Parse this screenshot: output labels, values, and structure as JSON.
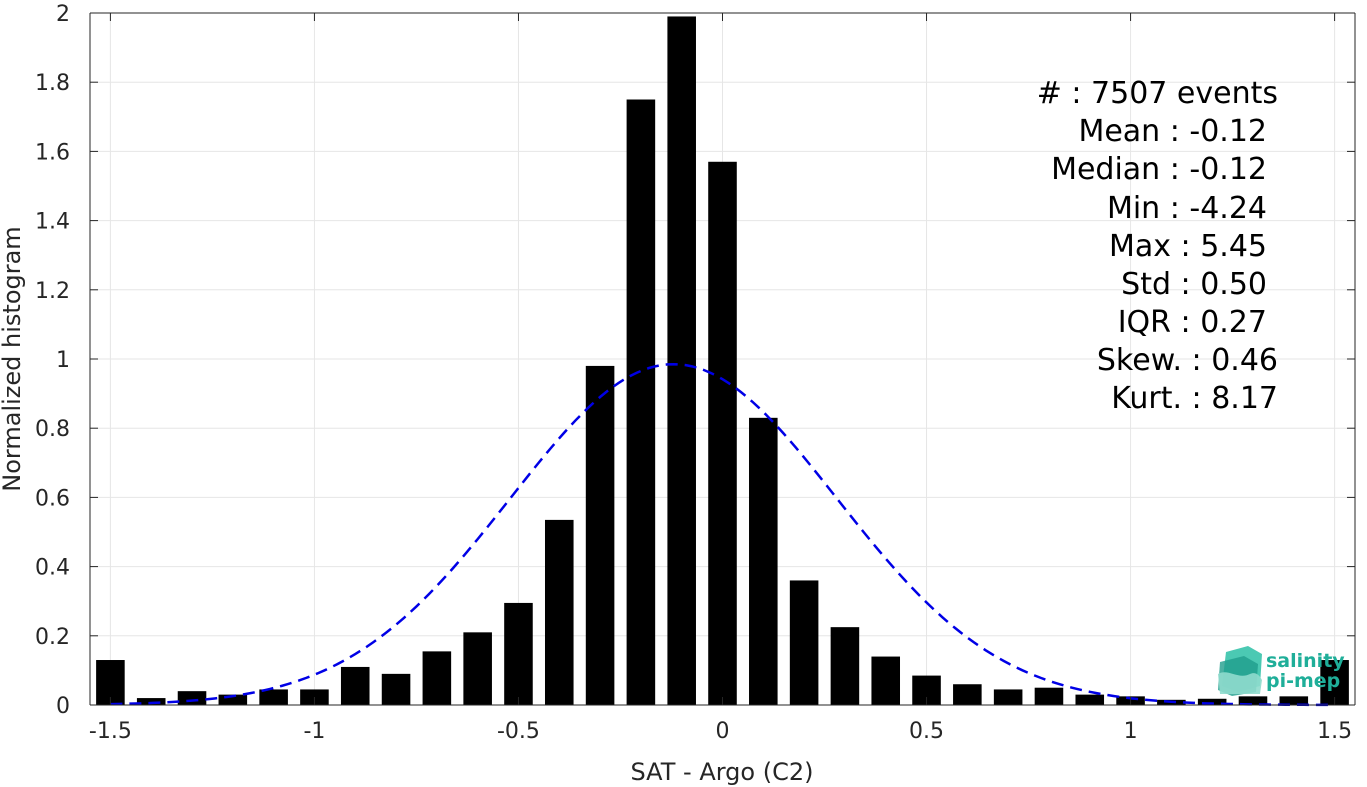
{
  "chart_data": {
    "type": "bar",
    "xlabel": "SAT - Argo (C2)",
    "ylabel": "Normalized histogram",
    "xlim": [
      -1.55,
      1.55
    ],
    "ylim": [
      0,
      2
    ],
    "xticks": [
      -1.5,
      -1,
      -0.5,
      0,
      0.5,
      1,
      1.5
    ],
    "xtick_labels": [
      "-1.5",
      "-1",
      "-0.5",
      "0",
      "0.5",
      "1",
      "1.5"
    ],
    "yticks": [
      0,
      0.2,
      0.4,
      0.6,
      0.8,
      1,
      1.2,
      1.4,
      1.6,
      1.8,
      2
    ],
    "ytick_labels": [
      "0",
      "0.2",
      "0.4",
      "0.6",
      "0.8",
      "1",
      "1.2",
      "1.4",
      "1.6",
      "1.8",
      "2"
    ],
    "grid": true,
    "bar_color": "#000000",
    "fit_color": "#0000e6",
    "bins": [
      {
        "x": -1.5,
        "y": 0.13
      },
      {
        "x": -1.4,
        "y": 0.02
      },
      {
        "x": -1.3,
        "y": 0.04
      },
      {
        "x": -1.2,
        "y": 0.03
      },
      {
        "x": -1.1,
        "y": 0.045
      },
      {
        "x": -1.0,
        "y": 0.045
      },
      {
        "x": -0.9,
        "y": 0.11
      },
      {
        "x": -0.8,
        "y": 0.09
      },
      {
        "x": -0.7,
        "y": 0.155
      },
      {
        "x": -0.6,
        "y": 0.21
      },
      {
        "x": -0.5,
        "y": 0.295
      },
      {
        "x": -0.4,
        "y": 0.535
      },
      {
        "x": -0.3,
        "y": 0.98
      },
      {
        "x": -0.2,
        "y": 1.75
      },
      {
        "x": -0.1,
        "y": 1.99
      },
      {
        "x": 0.0,
        "y": 1.57
      },
      {
        "x": 0.1,
        "y": 0.83
      },
      {
        "x": 0.2,
        "y": 0.36
      },
      {
        "x": 0.3,
        "y": 0.225
      },
      {
        "x": 0.4,
        "y": 0.14
      },
      {
        "x": 0.5,
        "y": 0.085
      },
      {
        "x": 0.6,
        "y": 0.06
      },
      {
        "x": 0.7,
        "y": 0.045
      },
      {
        "x": 0.8,
        "y": 0.05
      },
      {
        "x": 0.9,
        "y": 0.03
      },
      {
        "x": 1.0,
        "y": 0.025
      },
      {
        "x": 1.1,
        "y": 0.015
      },
      {
        "x": 1.2,
        "y": 0.018
      },
      {
        "x": 1.3,
        "y": 0.025
      },
      {
        "x": 1.4,
        "y": 0.025
      },
      {
        "x": 1.5,
        "y": 0.13
      }
    ],
    "fit": {
      "type": "normal",
      "mean": -0.12,
      "std": 0.4,
      "peak": 0.985,
      "x_range": [
        -1.5,
        1.5
      ]
    },
    "annotations": [
      "#  : 7507 events",
      "Mean : -0.12",
      "Median : -0.12",
      "Min : -4.24",
      "Max : 5.45",
      "Std : 0.50",
      "IQR : 0.27",
      "Skew. : 0.46",
      "Kurt. : 8.17"
    ],
    "logo": {
      "line1": "salinity",
      "line2": "pi-mep",
      "color": "#1fae99"
    }
  }
}
